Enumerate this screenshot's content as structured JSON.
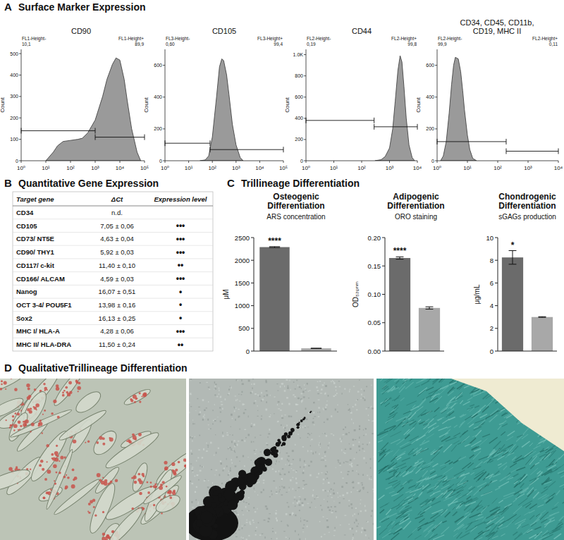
{
  "figure": {
    "panels": [
      {
        "letter": "A",
        "title": "Surface Marker Expression"
      },
      {
        "letter": "B",
        "title": "Quantitative Gene Expression"
      },
      {
        "letter": "C",
        "title": "Trillineage Differentiation"
      },
      {
        "letter": "D",
        "title": "QualitativeTrillineage Differentiation"
      }
    ]
  },
  "chart_data": [
    {
      "type": "area",
      "title": "CD90",
      "y_label": "Count",
      "log": "x",
      "color": "#9a9a9a",
      "x": [
        10,
        20,
        30,
        50,
        100,
        200,
        300,
        500,
        1000,
        2000,
        3000,
        5000,
        7000,
        10000,
        15000,
        20000,
        30000,
        50000,
        70000
      ],
      "values": [
        0,
        40,
        70,
        90,
        95,
        100,
        105,
        130,
        190,
        300,
        380,
        450,
        480,
        470,
        380,
        280,
        150,
        40,
        0
      ],
      "xlim": [
        1,
        100000
      ],
      "xticks": [
        {
          "value": 1,
          "label": "10⁰"
        },
        {
          "value": 10,
          "label": "10¹"
        },
        {
          "value": 100,
          "label": "10²"
        },
        {
          "value": 1000,
          "label": "10³"
        },
        {
          "value": 10000,
          "label": "10⁴"
        },
        {
          "value": 100000,
          "label": "10⁵"
        }
      ],
      "ylim": [
        0,
        520
      ],
      "yticks": [
        0,
        100,
        200,
        300,
        400,
        500
      ],
      "gates": [
        {
          "name": "FL1-Height-",
          "label": "10,1",
          "from": 1,
          "to": 1000,
          "level": 140
        },
        {
          "name": "FL1-Height+",
          "label": "89,9",
          "from": 1000,
          "to": 100000,
          "level": 110
        }
      ]
    },
    {
      "type": "area",
      "title": "CD105",
      "y_label": "Count",
      "log": "x",
      "color": "#9a9a9a",
      "x": [
        30,
        50,
        70,
        100,
        150,
        200,
        250,
        300,
        400,
        500,
        700,
        1000,
        1500,
        2000
      ],
      "values": [
        0,
        5,
        30,
        150,
        400,
        590,
        640,
        630,
        540,
        420,
        230,
        100,
        20,
        0
      ],
      "xlim": [
        1,
        100000
      ],
      "xticks": [
        {
          "value": 1,
          "label": "10⁰"
        },
        {
          "value": 10,
          "label": "10¹"
        },
        {
          "value": 100,
          "label": "10²"
        },
        {
          "value": 1000,
          "label": "10³"
        },
        {
          "value": 10000,
          "label": "10⁴"
        },
        {
          "value": 100000,
          "label": "10⁵"
        }
      ],
      "ylim": [
        0,
        700
      ],
      "yticks": [
        0,
        200,
        400,
        600
      ],
      "gates": [
        {
          "name": "FL3-Height-",
          "label": "0,60",
          "from": 1,
          "to": 80,
          "level": 110
        },
        {
          "name": "FL3-Height+",
          "label": "99,4",
          "from": 80,
          "to": 100000,
          "level": 70
        }
      ]
    },
    {
      "type": "area",
      "title": "CD44",
      "y_label": "Count",
      "log": "x",
      "color": "#9a9a9a",
      "x": [
        300,
        500,
        700,
        1000,
        1300,
        1600,
        2000,
        2400,
        2800,
        3300,
        4000,
        5000,
        6500,
        8000
      ],
      "values": [
        0,
        10,
        40,
        120,
        300,
        560,
        850,
        990,
        930,
        700,
        400,
        150,
        30,
        0
      ],
      "xlim": [
        1,
        10000
      ],
      "xticks": [
        {
          "value": 1,
          "label": "10⁰"
        },
        {
          "value": 10,
          "label": "10¹"
        },
        {
          "value": 100,
          "label": "10²"
        },
        {
          "value": 1000,
          "label": "10³"
        },
        {
          "value": 10000,
          "label": "10⁴"
        }
      ],
      "ylim": [
        0,
        1050
      ],
      "yticks": [
        0,
        200,
        400,
        600,
        800,
        {
          "value": 1000,
          "label": "1.0K"
        }
      ],
      "gates": [
        {
          "name": "FL2-Height-",
          "label": "0,19",
          "from": 1,
          "to": 280,
          "level": 380
        },
        {
          "name": "FL2-Height+",
          "label": "99,8",
          "from": 280,
          "to": 10000,
          "level": 320
        }
      ]
    },
    {
      "type": "area",
      "title": "CD34, CD45, CD11b, CD19, MHC II",
      "y_label": "Count",
      "log": "x",
      "color": "#9a9a9a",
      "x": [
        1.3,
        1.6,
        2,
        2.5,
        3,
        3.5,
        4,
        5,
        6,
        7,
        8,
        10,
        12,
        15,
        20
      ],
      "values": [
        0,
        30,
        120,
        300,
        480,
        600,
        650,
        640,
        560,
        440,
        320,
        160,
        70,
        15,
        0
      ],
      "xlim": [
        1,
        10000
      ],
      "xticks": [
        {
          "value": 1,
          "label": "10⁰"
        },
        {
          "value": 10,
          "label": "10¹"
        },
        {
          "value": 100,
          "label": "10²"
        },
        {
          "value": 1000,
          "label": "10³"
        },
        {
          "value": 10000,
          "label": "10⁴"
        }
      ],
      "ylim": [
        0,
        700
      ],
      "yticks": [
        0,
        200,
        400,
        600
      ],
      "gates": [
        {
          "name": "FL2-Height-",
          "label": "99,9",
          "from": 1,
          "to": 190,
          "level": 120
        },
        {
          "name": "FL2-Height+",
          "label": "0,11",
          "from": 190,
          "to": 10000,
          "level": 60
        }
      ]
    },
    {
      "type": "bar",
      "title": "Osteogenic Differentiation",
      "subtitle": "ARS concentration",
      "y_label": "μM",
      "categories": [
        null,
        null
      ],
      "values": [
        2290,
        60
      ],
      "errors": [
        10,
        3
      ],
      "colors": [
        "#6b6b6b",
        "#a8a8a8"
      ],
      "ylim": [
        0,
        2500
      ],
      "yticks": [
        0,
        500,
        1000,
        1500,
        2000,
        2500
      ],
      "annotations": [
        {
          "text": "****",
          "index": 0
        }
      ]
    },
    {
      "type": "bar",
      "title": "Adipogenic Differentiation",
      "subtitle": "ORO staining",
      "y_label": "OD₅₇₀ₙₘ",
      "categories": [
        null,
        null
      ],
      "values": [
        0.164,
        0.076
      ],
      "errors": [
        0.002,
        0.002
      ],
      "colors": [
        "#6b6b6b",
        "#a8a8a8"
      ],
      "ylim": [
        0,
        0.2
      ],
      "yticks": [
        {
          "value": 0,
          "label": "0.00"
        },
        {
          "value": 0.05,
          "label": "0.05"
        },
        {
          "value": 0.1,
          "label": "0.10"
        },
        {
          "value": 0.15,
          "label": "0.15"
        },
        {
          "value": 0.2,
          "label": "0.20"
        }
      ],
      "annotations": [
        {
          "text": "****",
          "index": 0
        }
      ]
    },
    {
      "type": "bar",
      "title": "Chondrogenic Differentiation",
      "subtitle": "sGAGs production",
      "y_label": "μg/mL",
      "categories": [
        null,
        null
      ],
      "values": [
        8.25,
        3.0
      ],
      "errors": [
        0.6,
        0.03
      ],
      "colors": [
        "#6b6b6b",
        "#a8a8a8"
      ],
      "ylim": [
        0,
        10
      ],
      "yticks": [
        0,
        2,
        4,
        6,
        8,
        10
      ],
      "annotations": [
        {
          "text": "*",
          "index": 0
        }
      ]
    }
  ],
  "table": {
    "header": [
      "Target gene",
      "ΔCt",
      "Expression level"
    ],
    "rows": [
      [
        "CD34",
        "n.d.",
        null
      ],
      [
        "CD105",
        "7,05 ± 0,06",
        "•••"
      ],
      [
        "CD73/ NT5E",
        "4,63 ± 0,04",
        "•••"
      ],
      [
        "CD90/ THY1",
        "5,92 ± 0,03",
        "•••"
      ],
      [
        "CD117/ c-kit",
        "11,40 ± 0,10",
        "••"
      ],
      [
        "CD166/ ALCAM",
        "4,59 ± 0,03",
        "•••"
      ],
      [
        "Nanog",
        "16,07 ± 0,51",
        "•"
      ],
      [
        "OCT 3-4/ POU5F1",
        "13,98 ± 0,16",
        "•"
      ],
      [
        "Sox2",
        "16,13 ± 0,25",
        "•"
      ],
      [
        "MHC I/ HLA-A",
        "4,28 ± 0,06",
        "•••"
      ],
      [
        "MHC II/ HLA-DRA",
        "11,50 ± 0,24",
        "••"
      ]
    ]
  }
}
